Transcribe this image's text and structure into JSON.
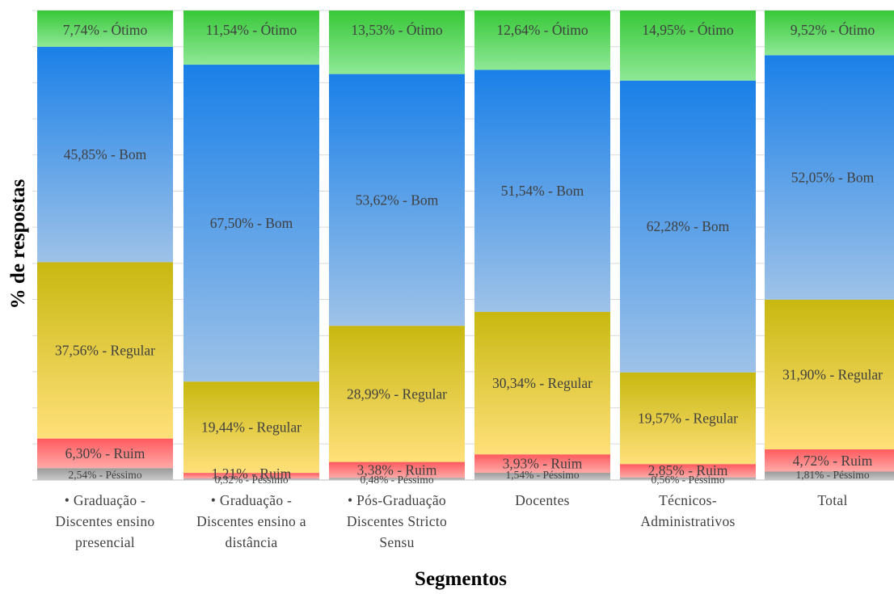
{
  "chart_data": {
    "type": "bar",
    "stacked": true,
    "normalized": true,
    "xlabel": "Segmentos",
    "ylabel": "% de respostas",
    "grid": "horizontal",
    "legend": "none",
    "categories": [
      [
        "• Graduação -",
        "Discentes ensino",
        "presencial"
      ],
      [
        "• Graduação -",
        "Discentes ensino a",
        "distância"
      ],
      [
        "• Pós-Graduação",
        "Discentes Stricto",
        "Sensu"
      ],
      [
        "Docentes"
      ],
      [
        "Técnicos-",
        "Administrativos"
      ],
      [
        "Total"
      ]
    ],
    "series": [
      {
        "name": "Péssimo",
        "values": [
          2.54,
          0.32,
          0.48,
          1.54,
          0.56,
          1.81
        ],
        "labels": [
          "2,54% - Péssimo",
          "0,32% - Péssimo",
          "0,48% - Péssimo",
          "1,54% - Péssimo",
          "0,56% - Péssimo",
          "1,81% - Péssimo"
        ]
      },
      {
        "name": "Ruim",
        "values": [
          6.3,
          1.21,
          3.38,
          3.93,
          2.85,
          4.72
        ],
        "labels": [
          "6,30% - Ruim",
          "1,21% - Ruim",
          "3,38% - Ruim",
          "3,93% - Ruim",
          "2,85% - Ruim",
          "4,72% - Ruim"
        ]
      },
      {
        "name": "Regular",
        "values": [
          37.56,
          19.44,
          28.99,
          30.34,
          19.57,
          31.9
        ],
        "labels": [
          "37,56% - Regular",
          "19,44% - Regular",
          "28,99% - Regular",
          "30,34% - Regular",
          "19,57% - Regular",
          "31,90% - Regular"
        ]
      },
      {
        "name": "Bom",
        "values": [
          45.85,
          67.5,
          53.62,
          51.54,
          62.28,
          52.05
        ],
        "labels": [
          "45,85% - Bom",
          "67,50% - Bom",
          "53,62% - Bom",
          "51,54% - Bom",
          "62,28% - Bom",
          "52,05% - Bom"
        ]
      },
      {
        "name": "Ótimo",
        "values": [
          7.74,
          11.54,
          13.53,
          12.64,
          14.95,
          9.52
        ],
        "labels": [
          "7,74% - Ótimo",
          "11,54% - Ótimo",
          "13,53% - Ótimo",
          "12,64% - Ótimo",
          "14,95% - Ótimo",
          "9,52% - Ótimo"
        ]
      }
    ],
    "colors": {
      "Péssimo": [
        "#c8c8c8",
        "#9a9a9a"
      ],
      "Ruim": [
        "#ffaaa8",
        "#ff5a5e"
      ],
      "Regular": [
        "#ffe07a",
        "#c8b810"
      ],
      "Bom": [
        "#9ec2e8",
        "#1a80e8"
      ],
      "Ótimo": [
        "#8ee896",
        "#38c838"
      ]
    }
  }
}
